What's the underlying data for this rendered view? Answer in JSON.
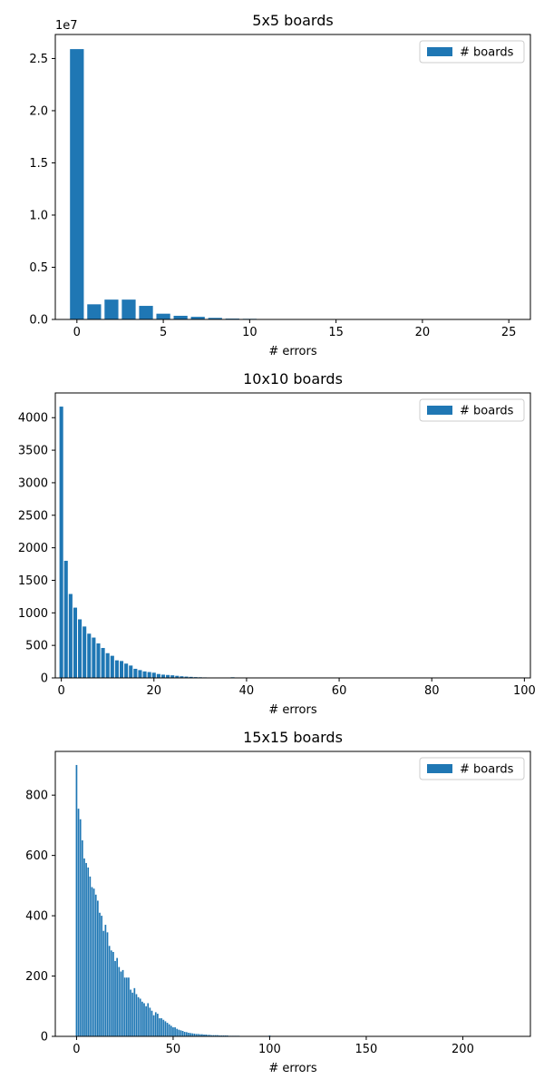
{
  "colors": {
    "bar": "#1f77b4",
    "legend_border": "#cccccc"
  },
  "chart_data": [
    {
      "type": "bar",
      "title": "5x5 boards",
      "xlabel": "# errors",
      "ylabel": "",
      "legend": {
        "entries": [
          "# boards"
        ],
        "placement": "top-right"
      },
      "offset_label": "1e7",
      "xlim": [
        -1.25,
        26.25
      ],
      "ylim": [
        0,
        27300000.0
      ],
      "xticks": [
        0,
        5,
        10,
        15,
        20,
        25
      ],
      "xtick_labels": [
        "0",
        "5",
        "10",
        "15",
        "20",
        "25"
      ],
      "yticks": [
        0,
        5000000,
        10000000,
        15000000,
        20000000,
        25000000
      ],
      "ytick_labels": [
        "0.0",
        "0.5",
        "1.0",
        "1.5",
        "2.0",
        "2.5"
      ],
      "bar_width": 0.8,
      "x": [
        0,
        1,
        2,
        3,
        4,
        5,
        6,
        7,
        8,
        9,
        10,
        11,
        12,
        13,
        14,
        15,
        16,
        17,
        18,
        19,
        20,
        21,
        22,
        23,
        24,
        25
      ],
      "values": [
        25900000,
        1450000,
        1900000,
        1900000,
        1300000,
        550000,
        350000,
        250000,
        150000,
        80000,
        60000,
        0,
        0,
        0,
        0,
        0,
        0,
        0,
        0,
        0,
        0,
        0,
        0,
        0,
        0,
        0
      ]
    },
    {
      "type": "bar",
      "title": "10x10 boards",
      "xlabel": "# errors",
      "ylabel": "",
      "legend": {
        "entries": [
          "# boards"
        ],
        "placement": "top-right"
      },
      "xlim": [
        -1.3,
        101.3
      ],
      "ylim": [
        0,
        4380
      ],
      "xticks": [
        0,
        20,
        40,
        60,
        80,
        100
      ],
      "xtick_labels": [
        "0",
        "20",
        "40",
        "60",
        "80",
        "100"
      ],
      "yticks": [
        0,
        500,
        1000,
        1500,
        2000,
        2500,
        3000,
        3500,
        4000
      ],
      "ytick_labels": [
        "0",
        "500",
        "1000",
        "1500",
        "2000",
        "2500",
        "3000",
        "3500",
        "4000"
      ],
      "bar_width": 0.8,
      "x": [
        0,
        1,
        2,
        3,
        4,
        5,
        6,
        7,
        8,
        9,
        10,
        11,
        12,
        13,
        14,
        15,
        16,
        17,
        18,
        19,
        20,
        21,
        22,
        23,
        24,
        25,
        26,
        27,
        28,
        29,
        30,
        31,
        32,
        33,
        34,
        35,
        36,
        37,
        38,
        39,
        40
      ],
      "values": [
        4170,
        1800,
        1290,
        1080,
        900,
        790,
        680,
        620,
        530,
        460,
        380,
        340,
        270,
        260,
        220,
        190,
        140,
        120,
        100,
        90,
        80,
        60,
        50,
        45,
        40,
        32,
        25,
        20,
        16,
        12,
        10,
        8,
        6,
        4,
        3,
        2,
        2,
        10,
        1,
        1,
        1
      ]
    },
    {
      "type": "bar",
      "title": "15x15 boards",
      "xlabel": "# errors",
      "ylabel": "",
      "legend": {
        "entries": [
          "# boards"
        ],
        "placement": "top-right"
      },
      "xlim": [
        -11,
        235
      ],
      "ylim": [
        0,
        945
      ],
      "xticks": [
        0,
        50,
        100,
        150,
        200
      ],
      "xtick_labels": [
        "0",
        "50",
        "100",
        "150",
        "200"
      ],
      "yticks": [
        0,
        200,
        400,
        600,
        800
      ],
      "ytick_labels": [
        "0",
        "200",
        "400",
        "600",
        "800"
      ],
      "bar_width": 0.8,
      "x": [
        0,
        1,
        2,
        3,
        4,
        5,
        6,
        7,
        8,
        9,
        10,
        11,
        12,
        13,
        14,
        15,
        16,
        17,
        18,
        19,
        20,
        21,
        22,
        23,
        24,
        25,
        26,
        27,
        28,
        29,
        30,
        31,
        32,
        33,
        34,
        35,
        36,
        37,
        38,
        39,
        40,
        41,
        42,
        43,
        44,
        45,
        46,
        47,
        48,
        49,
        50,
        51,
        52,
        53,
        54,
        55,
        56,
        57,
        58,
        59,
        60,
        61,
        62,
        63,
        64,
        65,
        66,
        67,
        68,
        69,
        70,
        71,
        72,
        73,
        74,
        75,
        76,
        77,
        78,
        79,
        80,
        81,
        82,
        83,
        84,
        85,
        86,
        87,
        88,
        89,
        90,
        91,
        92,
        93,
        94,
        95,
        96,
        97,
        98,
        99,
        100
      ],
      "values": [
        900,
        755,
        720,
        650,
        590,
        575,
        560,
        530,
        495,
        490,
        470,
        450,
        410,
        400,
        350,
        370,
        345,
        300,
        285,
        280,
        250,
        260,
        230,
        215,
        220,
        195,
        195,
        195,
        155,
        145,
        160,
        140,
        130,
        125,
        115,
        110,
        100,
        110,
        95,
        85,
        70,
        80,
        75,
        60,
        60,
        55,
        50,
        45,
        40,
        35,
        30,
        30,
        25,
        22,
        20,
        18,
        15,
        14,
        12,
        11,
        10,
        9,
        8,
        8,
        7,
        7,
        6,
        6,
        5,
        5,
        4,
        4,
        4,
        4,
        3,
        3,
        3,
        3,
        3,
        2,
        2,
        2,
        2,
        2,
        2,
        1,
        1,
        1,
        1,
        1,
        1,
        1,
        1,
        1,
        1,
        1,
        1,
        1,
        1,
        1,
        3
      ]
    }
  ]
}
